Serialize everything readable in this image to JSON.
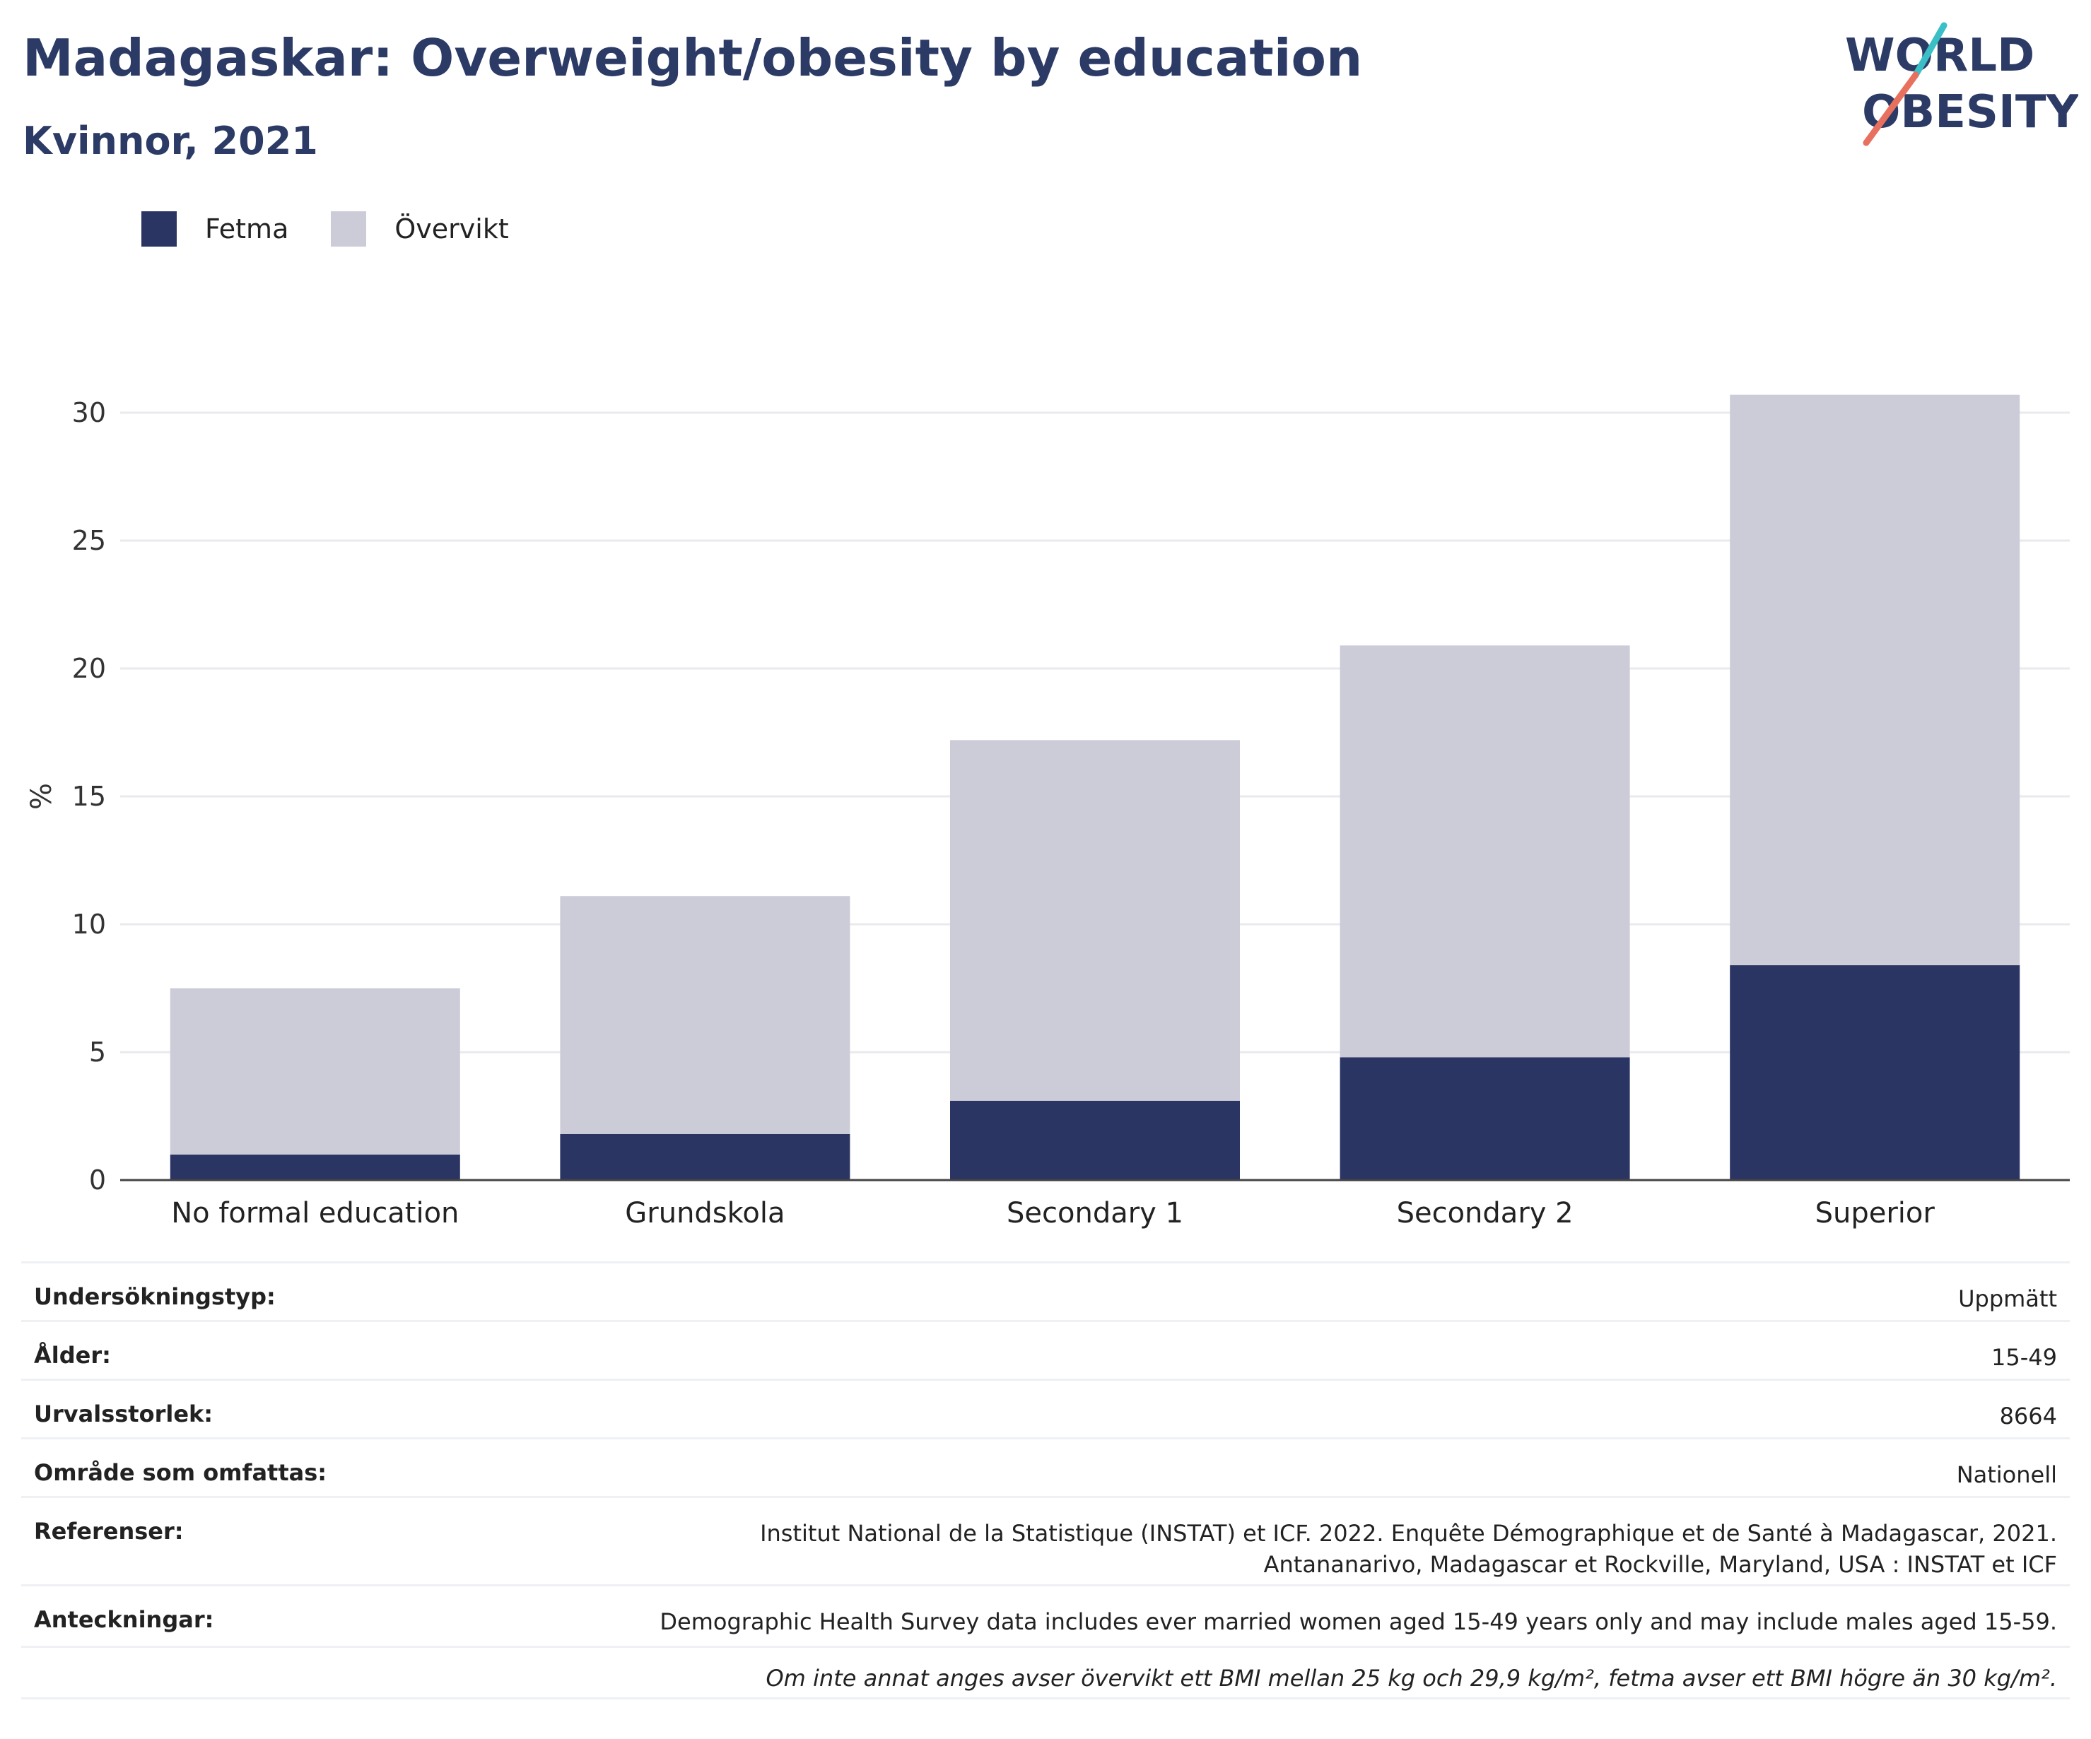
{
  "header": {
    "title": "Madagaskar: Overweight/obesity by education",
    "subtitle": "Kvinnor, 2021",
    "logo_line1": "WORLD",
    "logo_line2": "OBESITY"
  },
  "colors": {
    "fetma": "#2b3564",
    "overvikt": "#cbccd8",
    "title": "#2c3a66",
    "logo_teal": "#3bbfc6",
    "logo_coral": "#e8705e"
  },
  "chart_data": {
    "type": "bar",
    "stacked": true,
    "categories": [
      "No formal education",
      "Grundskola",
      "Secondary 1",
      "Secondary 2",
      "Superior"
    ],
    "series": [
      {
        "name": "Fetma",
        "values": [
          1.0,
          1.8,
          3.1,
          4.8,
          8.4
        ]
      },
      {
        "name": "Övervikt",
        "values": [
          6.5,
          9.3,
          14.1,
          16.1,
          22.3
        ]
      }
    ],
    "ylabel": "%",
    "ylim": [
      0,
      32
    ],
    "yticks": [
      0,
      5,
      10,
      15,
      20,
      25,
      30
    ],
    "grid": true,
    "legend": "top-left"
  },
  "meta": [
    {
      "key": "Undersökningstyp:",
      "value": "Uppmätt"
    },
    {
      "key": "Ålder:",
      "value": "15-49"
    },
    {
      "key": "Urvalsstorlek:",
      "value": "8664"
    },
    {
      "key": "Område som omfattas:",
      "value": "Nationell"
    },
    {
      "key": "Referenser:",
      "value": "Institut National de la Statistique (INSTAT) et ICF. 2022. Enquête Démographique et de Santé à Madagascar, 2021. Antananarivo, Madagascar et Rockville, Maryland, USA : INSTAT et ICF"
    },
    {
      "key": "Anteckningar:",
      "value": "Demographic Health Survey data includes ever married women aged 15-49 years only and may include males aged 15-59."
    }
  ],
  "footnote": "Om inte annat anges avser övervikt ett BMI mellan 25 kg och 29,9 kg/m², fetma avser ett BMI högre än 30 kg/m²."
}
